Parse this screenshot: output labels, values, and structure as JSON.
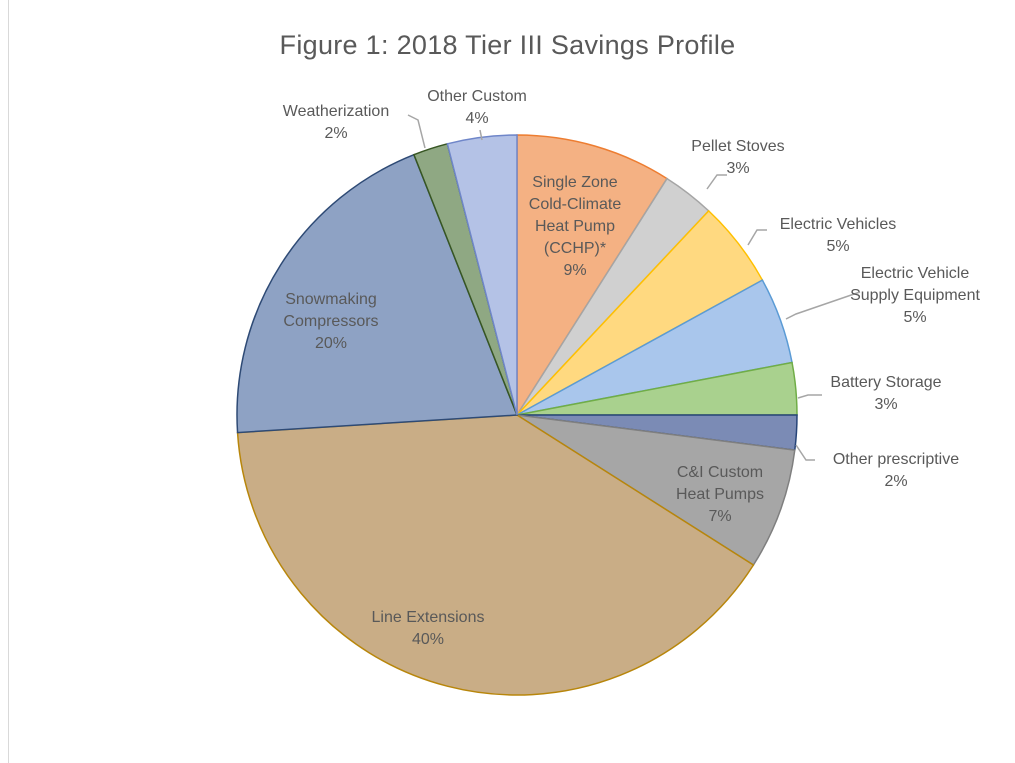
{
  "chart_data": {
    "type": "pie",
    "title": "Figure 1:  2018 Tier III Savings Profile",
    "slices": [
      {
        "label": [
          "Single Zone",
          "Cold-Climate",
          "Heat Pump",
          "(CCHP)*"
        ],
        "pct_label": "9%",
        "value": 9,
        "color": "#f4b183",
        "stroke": "#ed7d31"
      },
      {
        "label": [
          "Pellet Stoves"
        ],
        "pct_label": "3%",
        "value": 3,
        "color": "#d0d0d0",
        "stroke": "#a5a5a5"
      },
      {
        "label": [
          "Electric Vehicles"
        ],
        "pct_label": "5%",
        "value": 5,
        "color": "#ffd980",
        "stroke": "#ffc000"
      },
      {
        "label": [
          "Electric Vehicle",
          "Supply Equipment"
        ],
        "pct_label": "5%",
        "value": 5,
        "color": "#a9c6ec",
        "stroke": "#5b9bd5"
      },
      {
        "label": [
          "Battery Storage"
        ],
        "pct_label": "3%",
        "value": 3,
        "color": "#a9d18e",
        "stroke": "#70ad47"
      },
      {
        "label": [
          "Other prescriptive"
        ],
        "pct_label": "2%",
        "value": 2,
        "color": "#7b8bb5",
        "stroke": "#264478"
      },
      {
        "label": [
          "C&I Custom",
          "Heat Pumps"
        ],
        "pct_label": "7%",
        "value": 7,
        "color": "#a6a6a6",
        "stroke": "#7f7f7f"
      },
      {
        "label": [
          "Line Extensions"
        ],
        "pct_label": "40%",
        "value": 40,
        "color": "#c9ad86",
        "stroke": "#b8860b"
      },
      {
        "label": [
          "Snowmaking",
          "Compressors"
        ],
        "pct_label": "20%",
        "value": 20,
        "color": "#8ea2c4",
        "stroke": "#2e4a75"
      },
      {
        "label": [
          "Weatherization"
        ],
        "pct_label": "2%",
        "value": 2,
        "color": "#8fa883",
        "stroke": "#375623"
      },
      {
        "label": [
          "Other Custom"
        ],
        "pct_label": "4%",
        "value": 4,
        "color": "#b4c2e6",
        "stroke": "#6f86c9"
      }
    ]
  }
}
